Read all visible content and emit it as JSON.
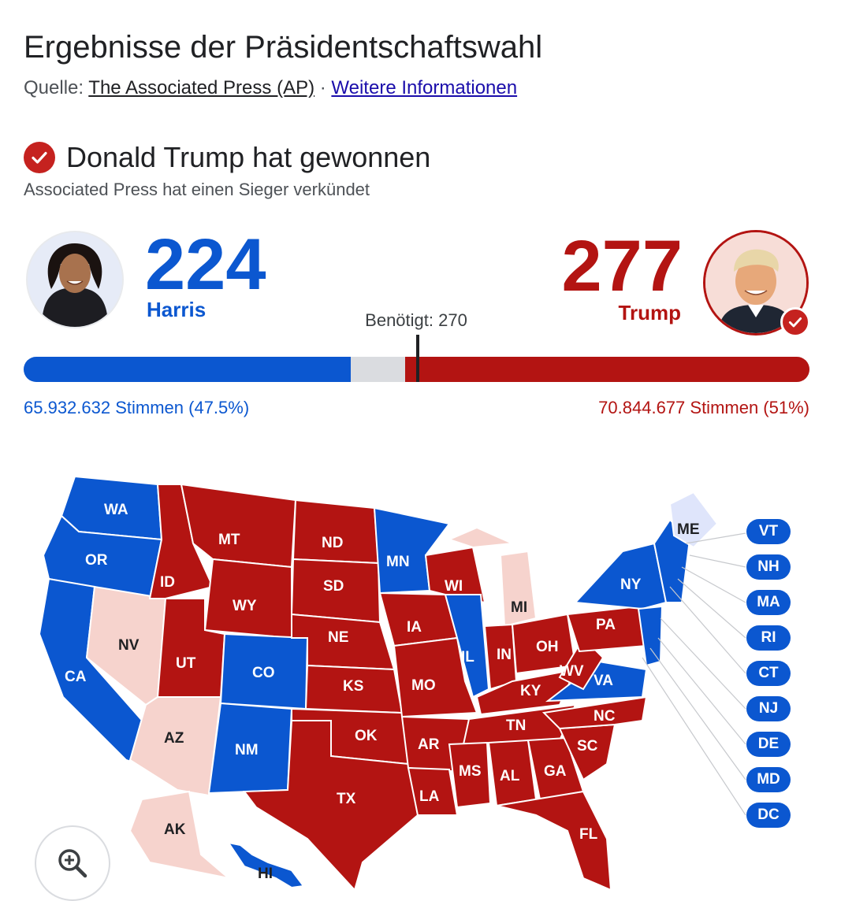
{
  "header": {
    "title": "Ergebnisse der Präsidentschaftswahl",
    "source_prefix": "Quelle:",
    "source_name": "The Associated Press (AP)",
    "separator": "·",
    "more_info": "Weitere Informationen"
  },
  "winner": {
    "text": "Donald Trump hat gewonnen",
    "subtext": "Associated Press hat einen Sieger verkündet"
  },
  "candidates": {
    "harris": {
      "name": "Harris",
      "electoral_votes": "224",
      "votes": "65.932.632 Stimmen (47.5%)",
      "color": "#0b57d0"
    },
    "trump": {
      "name": "Trump",
      "electoral_votes": "277",
      "votes": "70.844.677 Stimmen (51%)",
      "color": "#b31412"
    }
  },
  "needed": {
    "label": "Benötigt: 270",
    "value": 270,
    "total": 538
  },
  "bar": {
    "harris_fraction": 0.4164,
    "trump_fraction": 0.5149
  },
  "map": {
    "states": {
      "WA": "WA",
      "OR": "OR",
      "CA": "CA",
      "NV": "NV",
      "ID": "ID",
      "MT": "MT",
      "WY": "WY",
      "UT": "UT",
      "AZ": "AZ",
      "CO": "CO",
      "NM": "NM",
      "ND": "ND",
      "SD": "SD",
      "NE": "NE",
      "KS": "KS",
      "OK": "OK",
      "TX": "TX",
      "MN": "MN",
      "IA": "IA",
      "MO": "MO",
      "AR": "AR",
      "LA": "LA",
      "WI": "WI",
      "IL": "IL",
      "MI": "MI",
      "IN": "IN",
      "OH": "OH",
      "KY": "KY",
      "TN": "TN",
      "MS": "MS",
      "AL": "AL",
      "GA": "GA",
      "FL": "FL",
      "SC": "SC",
      "NC": "NC",
      "VA": "VA",
      "WV": "WV",
      "PA": "PA",
      "NY": "NY",
      "ME": "ME",
      "AK": "AK",
      "HI": "HI"
    },
    "small_states": [
      "VT",
      "NH",
      "MA",
      "RI",
      "CT",
      "NJ",
      "DE",
      "MD",
      "DC"
    ]
  },
  "zoom": {
    "icon": "zoom-in-icon"
  }
}
